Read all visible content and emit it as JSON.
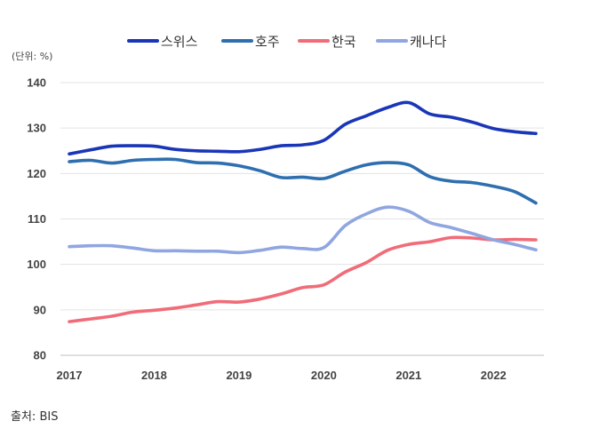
{
  "unit_label": "(단위: %)",
  "source_label": "출처:",
  "source_value": "BIS",
  "chart_data": {
    "type": "line",
    "title": "",
    "xlabel": "",
    "ylabel": "",
    "ylim": [
      80,
      140
    ],
    "yticks": [
      80,
      90,
      100,
      110,
      120,
      130,
      140
    ],
    "xlim": [
      2017,
      2022.5
    ],
    "xticks": [
      "2017",
      "2018",
      "2019",
      "2020",
      "2021",
      "2022"
    ],
    "grid": true,
    "legend_position": "top",
    "x": [
      2017.0,
      2017.25,
      2017.5,
      2017.75,
      2018.0,
      2018.25,
      2018.5,
      2018.75,
      2019.0,
      2019.25,
      2019.5,
      2019.75,
      2020.0,
      2020.25,
      2020.5,
      2020.75,
      2021.0,
      2021.25,
      2021.5,
      2021.75,
      2022.0,
      2022.25,
      2022.5
    ],
    "series": [
      {
        "name": "스위스",
        "color": "#1a36b8",
        "values": [
          124.3,
          125.2,
          126.0,
          126.1,
          126.0,
          125.3,
          125.0,
          124.9,
          124.8,
          125.3,
          126.1,
          126.3,
          127.3,
          130.8,
          132.7,
          134.5,
          135.6,
          133.1,
          132.4,
          131.3,
          129.9,
          129.2,
          128.8
        ]
      },
      {
        "name": "호주",
        "color": "#2e6fb0",
        "values": [
          122.6,
          122.9,
          122.3,
          122.9,
          123.1,
          123.1,
          122.4,
          122.3,
          121.7,
          120.6,
          119.1,
          119.2,
          118.9,
          120.5,
          121.9,
          122.4,
          121.9,
          119.3,
          118.3,
          118.0,
          117.2,
          116.0,
          113.5
        ]
      },
      {
        "name": "한국",
        "color": "#f06c78",
        "values": [
          87.4,
          88.0,
          88.6,
          89.5,
          89.9,
          90.4,
          91.1,
          91.8,
          91.7,
          92.4,
          93.5,
          94.9,
          95.5,
          98.3,
          100.4,
          103.1,
          104.4,
          105.0,
          105.9,
          105.8,
          105.4,
          105.5,
          105.4
        ]
      },
      {
        "name": "캐나다",
        "color": "#8fa6e0",
        "values": [
          103.9,
          104.1,
          104.1,
          103.6,
          103.0,
          103.0,
          102.9,
          102.9,
          102.6,
          103.1,
          103.8,
          103.5,
          103.7,
          108.5,
          111.1,
          112.6,
          111.7,
          109.2,
          108.1,
          106.8,
          105.4,
          104.4,
          103.2
        ]
      }
    ]
  }
}
